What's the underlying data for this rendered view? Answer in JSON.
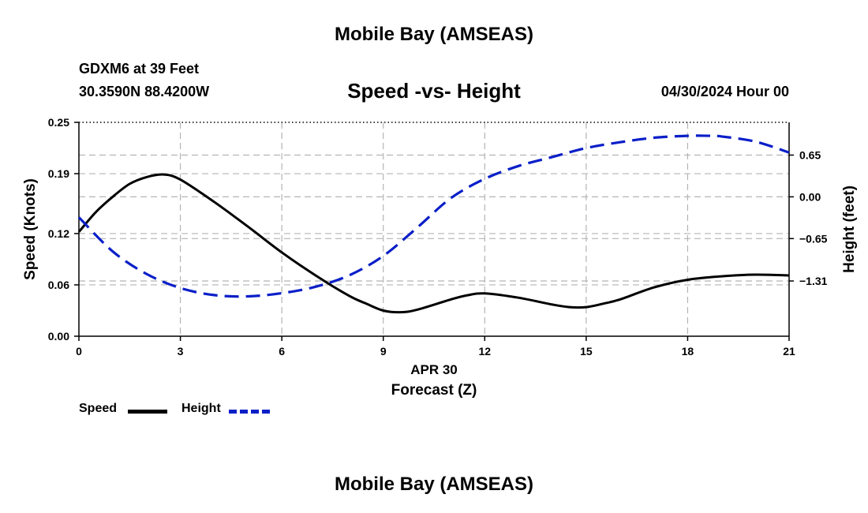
{
  "header": {
    "top_title": "Mobile Bay (AMSEAS)",
    "station": "GDXM6 at 39 Feet",
    "coords": "30.3590N  88.4200W",
    "datetime": "04/30/2024 Hour 00",
    "bottom_title": "Mobile Bay (AMSEAS)"
  },
  "colors": {
    "speed": "#000000",
    "height": "#0a1fc8",
    "grid": "#b4b4b4"
  },
  "chart_data": {
    "type": "line",
    "title": "Speed -vs- Height",
    "xlabel": "Forecast (Z)",
    "xlabel_date": "APR 30",
    "ylabel_left": "Speed (Knots)",
    "ylabel_right": "Height (feet)",
    "xlim": [
      0,
      21
    ],
    "ylim_left": [
      0,
      0.25
    ],
    "ylim_right": [
      -2.17,
      1.16
    ],
    "x_ticks": [
      0,
      3,
      6,
      9,
      12,
      15,
      18,
      21
    ],
    "x_tick_labels": [
      "0",
      "3",
      "6",
      "9",
      "12",
      "15",
      "18",
      "21"
    ],
    "y_left_ticks": [
      0.0,
      0.06,
      0.12,
      0.19,
      0.25
    ],
    "y_left_tick_labels": [
      "0.00",
      "0.06",
      "0.12",
      "0.19",
      "0.25"
    ],
    "y_right_ticks": [
      -1.31,
      -0.65,
      0.0,
      0.65
    ],
    "y_right_tick_labels": [
      "−1.31",
      "−0.65",
      "0.00",
      "0.65"
    ],
    "grid": true,
    "legend": [
      {
        "name": "Speed",
        "style": "solid"
      },
      {
        "name": "Height",
        "style": "dashed"
      }
    ],
    "series": [
      {
        "name": "Speed",
        "axis": "left",
        "style": "solid",
        "x": [
          0,
          0.5,
          1,
          1.5,
          2,
          2.5,
          3,
          4,
          5,
          6,
          7,
          8,
          8.5,
          9,
          9.5,
          10,
          11,
          11.5,
          12,
          13,
          14,
          14.5,
          15,
          15.5,
          16,
          17,
          18,
          19,
          20,
          21
        ],
        "values": [
          0.122,
          0.145,
          0.163,
          0.178,
          0.186,
          0.189,
          0.183,
          0.157,
          0.128,
          0.098,
          0.071,
          0.047,
          0.038,
          0.03,
          0.028,
          0.031,
          0.043,
          0.048,
          0.05,
          0.045,
          0.037,
          0.034,
          0.034,
          0.038,
          0.043,
          0.057,
          0.066,
          0.07,
          0.072,
          0.071
        ]
      },
      {
        "name": "Height",
        "axis": "right",
        "style": "dashed",
        "x": [
          0,
          1,
          2,
          3,
          4,
          5,
          6,
          7,
          8,
          9,
          10,
          11,
          12,
          13,
          14,
          15,
          16,
          17,
          18,
          18.7,
          19,
          20,
          21
        ],
        "values": [
          -0.32,
          -0.85,
          -1.2,
          -1.42,
          -1.53,
          -1.55,
          -1.5,
          -1.4,
          -1.22,
          -0.92,
          -0.48,
          -0.02,
          0.28,
          0.48,
          0.62,
          0.76,
          0.85,
          0.92,
          0.95,
          0.95,
          0.94,
          0.86,
          0.69
        ]
      }
    ]
  }
}
